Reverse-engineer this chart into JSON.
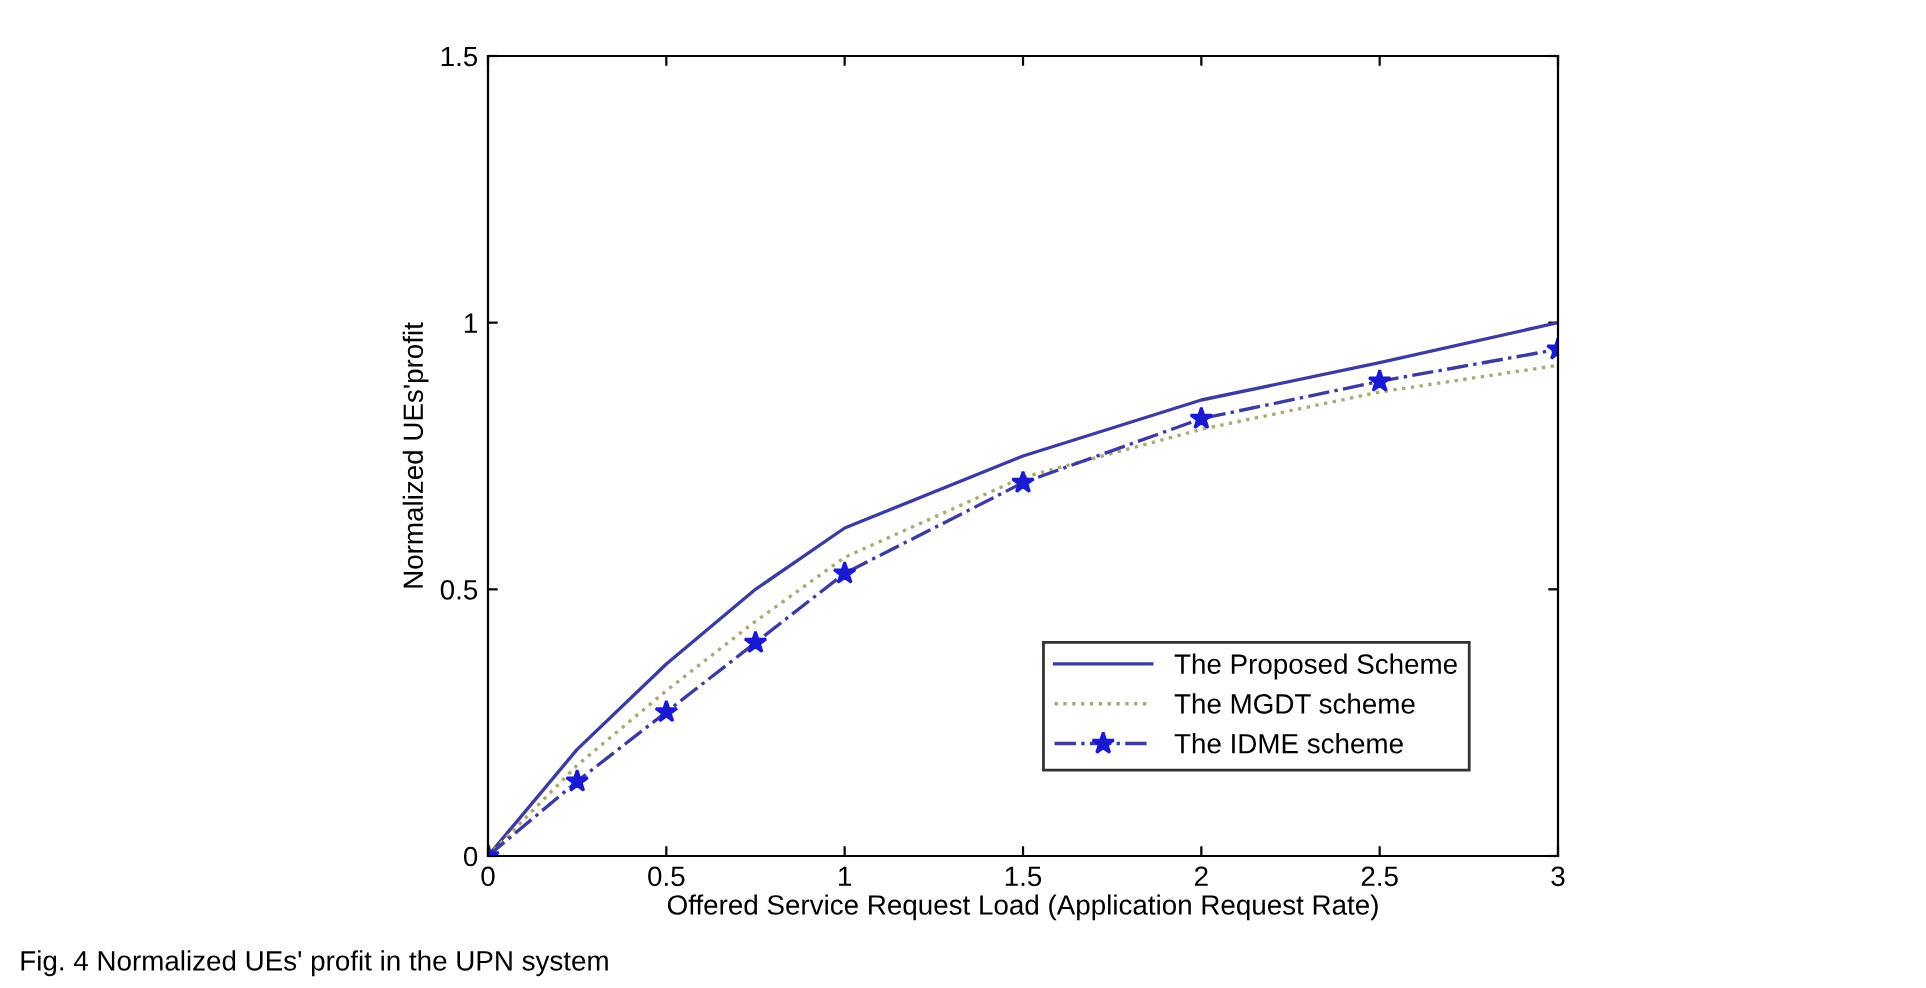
{
  "chart_data": {
    "type": "line",
    "xlabel": "Offered Service Request Load (Application Request Rate)",
    "ylabel": "Normalized UEs'profit",
    "x": [
      0,
      0.25,
      0.5,
      0.75,
      1,
      1.5,
      2,
      2.5,
      3
    ],
    "series": [
      {
        "name": "The Proposed Scheme",
        "color": "#3c3ca0",
        "line_style": "solid",
        "marker": "none",
        "values": [
          0,
          0.2,
          0.36,
          0.5,
          0.615,
          0.75,
          0.855,
          0.925,
          1.0
        ]
      },
      {
        "name": "The MGDT scheme",
        "color": "#a8a878",
        "line_style": "dotted",
        "marker": "none",
        "values": [
          0,
          0.17,
          0.31,
          0.44,
          0.56,
          0.71,
          0.8,
          0.87,
          0.92
        ]
      },
      {
        "name": "The IDME scheme",
        "color": "#3c3ca0",
        "line_style": "dashdot",
        "marker": "star",
        "values": [
          0,
          0.14,
          0.27,
          0.4,
          0.53,
          0.7,
          0.82,
          0.89,
          0.95
        ]
      }
    ],
    "xlim": [
      0,
      3
    ],
    "ylim": [
      0,
      1.5
    ],
    "xticks": [
      0,
      0.5,
      1,
      1.5,
      2,
      2.5,
      3
    ],
    "yticks": [
      0,
      0.5,
      1,
      1.5
    ],
    "grid": false,
    "legend": "bottom right",
    "annotations": [
      "Fig. 4 Normalized UEs' profit in the UPN system"
    ]
  }
}
